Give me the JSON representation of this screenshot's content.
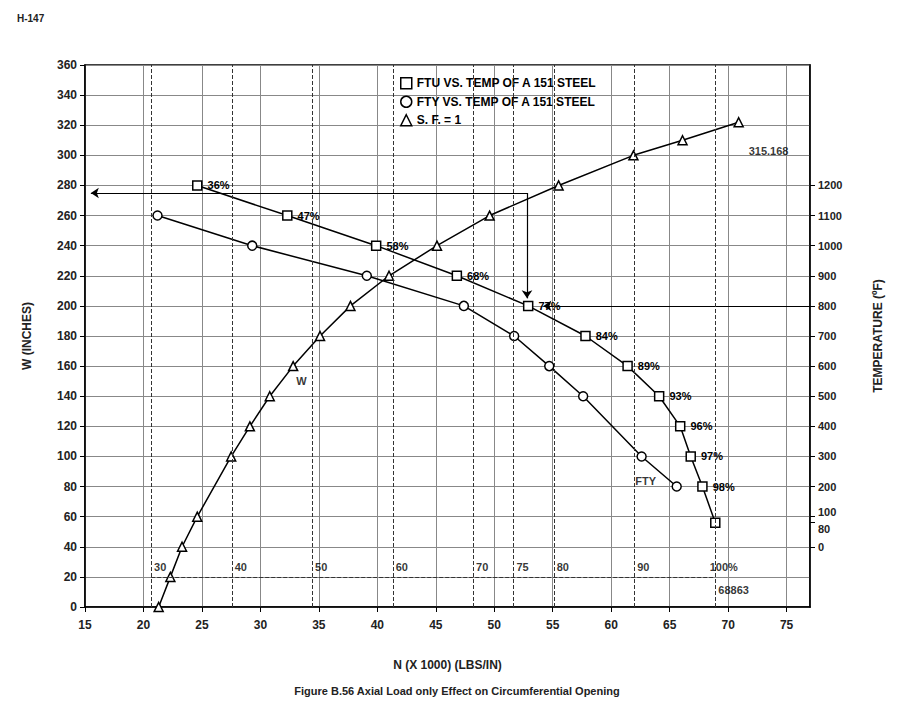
{
  "chart_data": {
    "type": "line",
    "page_label": "H-147",
    "title": "Figure B.56 Axial Load only Effect on Circumferential Opening",
    "x_label": "N (X 1000) (LBS/IN)",
    "y_label": "W (INCHES)",
    "y2_label": "TEMPERATURE (ºF)",
    "xlim": [
      15,
      77
    ],
    "xticks": [
      15,
      20,
      25,
      30,
      35,
      40,
      45,
      50,
      55,
      60,
      65,
      70,
      75
    ],
    "ylim": [
      0,
      360
    ],
    "yticks": [
      0,
      20,
      40,
      60,
      80,
      100,
      120,
      140,
      160,
      180,
      200,
      220,
      240,
      260,
      280,
      300,
      320,
      340,
      360
    ],
    "y2lim": [
      -200,
      1600
    ],
    "y2ticks": [
      0,
      80,
      100,
      200,
      300,
      400,
      500,
      600,
      700,
      800,
      900,
      1000,
      1100,
      1200
    ],
    "grid": true,
    "legend": "top",
    "series": [
      {
        "name": "FTU VS. TEMP OF A 151 STEEL",
        "axis": "y2",
        "marker": "square",
        "line_style": "solid",
        "color": "#000000",
        "x": [
          24.6,
          32.3,
          39.9,
          46.8,
          52.9,
          57.8,
          61.4,
          64.1,
          65.9,
          66.8,
          67.8,
          68.9
        ],
        "values": [
          1200,
          1100,
          1000,
          900,
          800,
          700,
          600,
          500,
          400,
          300,
          200,
          80
        ],
        "point_labels": [
          "36%",
          "47%",
          "58%",
          "68%",
          "77%",
          "84%",
          "89%",
          "93%",
          "96%",
          "97%",
          "98%",
          null
        ]
      },
      {
        "name": "FTY VS. TEMP OF A 151 STEEL",
        "axis": "y2",
        "marker": "circle",
        "line_style": "solid",
        "color": "#000000",
        "x": [
          21.2,
          29.3,
          39.1,
          47.4,
          51.7,
          54.7,
          57.6,
          62.6,
          65.6
        ],
        "values": [
          1100,
          1000,
          900,
          800,
          700,
          600,
          500,
          300,
          200
        ]
      },
      {
        "name": "S. F. = 1",
        "marker": "triangle",
        "line_style": "solid",
        "color": "#000000",
        "x": [
          21.3,
          22.3,
          23.3,
          24.6,
          27.5,
          29.1,
          30.8,
          32.8,
          35.1,
          37.7,
          41.0,
          45.1,
          49.6,
          55.5,
          61.9,
          66.1,
          70.9
        ],
        "values": [
          0,
          20,
          40,
          60,
          100,
          120,
          140,
          160,
          180,
          200,
          220,
          240,
          260,
          280,
          300,
          310,
          322
        ]
      }
    ],
    "percent_scale": {
      "y": 20,
      "line_style": "dashed",
      "x": [
        20.66,
        27.55,
        34.43,
        41.32,
        48.2,
        51.65,
        55.09,
        61.98,
        68.86
      ],
      "labels": [
        "30",
        "40",
        "50",
        "60",
        "70",
        "75",
        "80",
        "90",
        "100%"
      ]
    },
    "annotations": [
      {
        "text": "W",
        "x": 32.8,
        "y": 150
      },
      {
        "text": "FTY",
        "x": 61.8,
        "y": 84
      },
      {
        "text": "315.168",
        "x": 71.5,
        "y": 303
      },
      {
        "text": "68863",
        "x": 68.9,
        "y": 11
      }
    ],
    "arrows": [
      {
        "x": [
          52.8,
          15.5
        ],
        "y": [
          275,
          275
        ]
      },
      {
        "x": [
          52.8,
          52.8
        ],
        "y": [
          275,
          205
        ]
      },
      {
        "x": [
          77,
          54.2
        ],
        "y": [
          200,
          200
        ]
      }
    ]
  }
}
